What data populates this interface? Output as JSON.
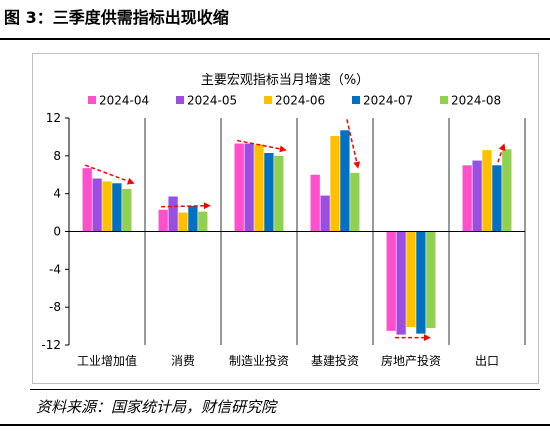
{
  "figure": {
    "title": "图 3：三季度供需指标出现收缩",
    "source": "资料来源：国家统计局，财信研究院"
  },
  "chart_data": {
    "type": "bar",
    "title": "主要宏观指标当月增速（%）",
    "categories": [
      "工业增加值",
      "消费",
      "制造业投资",
      "基建投资",
      "房地产投资",
      "出口"
    ],
    "series": [
      {
        "name": "2024-04",
        "color": "#ff4fcb",
        "values": [
          6.7,
          2.3,
          9.3,
          6.0,
          -10.5,
          7.0
        ]
      },
      {
        "name": "2024-05",
        "color": "#9b4fe0",
        "values": [
          5.6,
          3.7,
          9.3,
          3.8,
          -10.9,
          7.5
        ]
      },
      {
        "name": "2024-06",
        "color": "#ffc000",
        "values": [
          5.3,
          2.0,
          9.2,
          10.1,
          -10.1,
          8.6
        ]
      },
      {
        "name": "2024-07",
        "color": "#0070c0",
        "values": [
          5.1,
          2.7,
          8.3,
          10.7,
          -10.8,
          7.0
        ]
      },
      {
        "name": "2024-08",
        "color": "#92d050",
        "values": [
          4.5,
          2.1,
          8.0,
          6.2,
          -10.2,
          8.7
        ]
      }
    ],
    "ylim": [
      -12,
      12
    ],
    "yticks": [
      12,
      8,
      4,
      0,
      -4,
      -8,
      -12
    ],
    "legend_position": "top",
    "grid": false,
    "annotations": [
      {
        "type": "dashed-arrow",
        "color": "#ff0000",
        "category": "工业增加值",
        "from_series": 0,
        "to_series": 4,
        "direction": "down"
      },
      {
        "type": "dashed-arrow",
        "color": "#ff0000",
        "category": "消费",
        "from_series": 0,
        "to_series": 4,
        "direction": "down"
      },
      {
        "type": "dashed-arrow",
        "color": "#ff0000",
        "category": "制造业投资",
        "from_series": 0,
        "to_series": 4,
        "direction": "down"
      },
      {
        "type": "dashed-arrow",
        "color": "#ff0000",
        "category": "基建投资",
        "from_series": 3,
        "to_series": 4,
        "direction": "down"
      },
      {
        "type": "dashed-arrow",
        "color": "#ff0000",
        "category": "房地产投资",
        "from_series": 1,
        "to_series": 3,
        "direction": "flat"
      },
      {
        "type": "dashed-arrow",
        "color": "#ff0000",
        "category": "出口",
        "from_series": 3,
        "to_series": 4,
        "direction": "up"
      }
    ]
  }
}
